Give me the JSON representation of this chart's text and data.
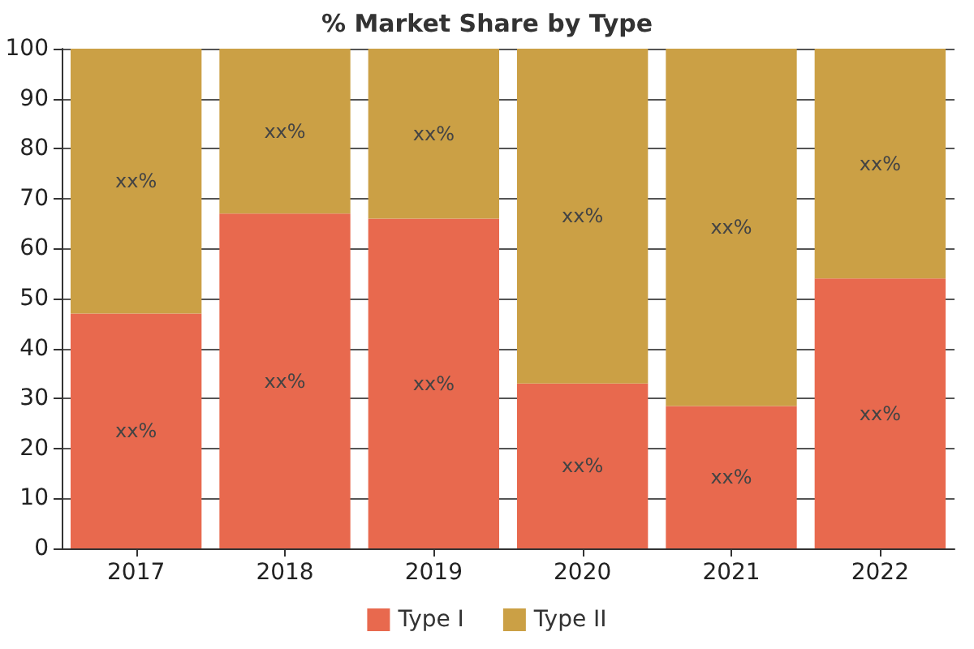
{
  "chart_data": {
    "type": "bar",
    "title": "% Market Share by Type",
    "stacked": true,
    "categories": [
      "2017",
      "2018",
      "2019",
      "2020",
      "2021",
      "2022"
    ],
    "series": [
      {
        "name": "Type I",
        "color": "#e8694e",
        "values": [
          47,
          67,
          66,
          33,
          28.5,
          54
        ],
        "value_labels": [
          "xx%",
          "xx%",
          "xx%",
          "xx%",
          "xx%",
          "xx%"
        ]
      },
      {
        "name": "Type II",
        "color": "#cba045",
        "values": [
          53,
          33,
          34,
          67,
          71.5,
          46
        ],
        "value_labels": [
          "xx%",
          "xx%",
          "xx%",
          "xx%",
          "xx%",
          "xx%"
        ]
      }
    ],
    "ylim": [
      0,
      100
    ],
    "yticks": [
      0,
      10,
      20,
      30,
      40,
      50,
      60,
      70,
      80,
      90,
      100
    ],
    "grid": "y",
    "legend": "bottom"
  }
}
